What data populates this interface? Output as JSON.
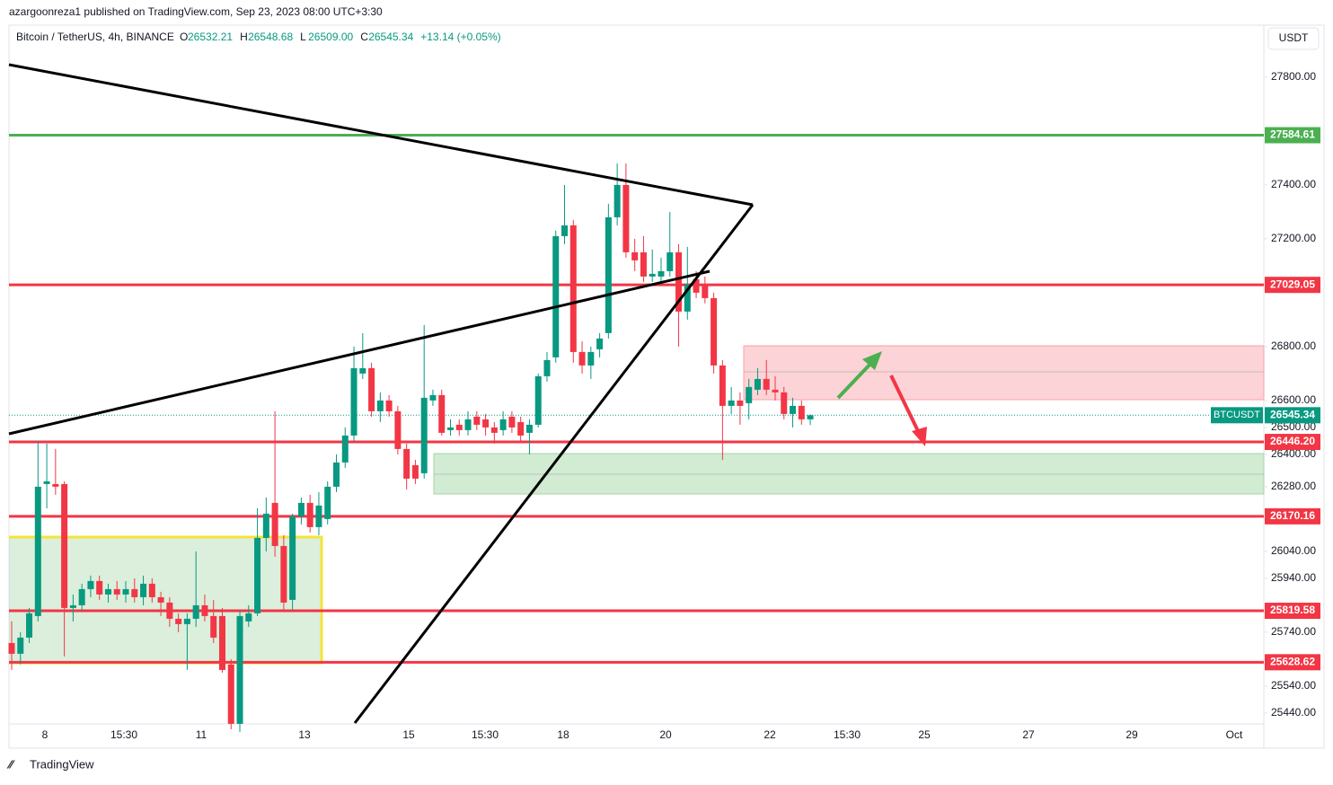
{
  "header": {
    "publisher": "azargoonreza1 published on TradingView.com, Sep 23, 2023 08:00 UTC+3:30",
    "symbol": "Bitcoin / TetherUS, 4h, BINANCE",
    "ohlc": [
      {
        "label": "O",
        "value": "26532.21"
      },
      {
        "label": "H",
        "value": "26548.68"
      },
      {
        "label": "L",
        "value": "26509.00"
      },
      {
        "label": "C",
        "value": "26545.34"
      }
    ],
    "change": "+13.14 (+0.05%)",
    "currency": "USDT"
  },
  "chart_data": {
    "type": "candlestick",
    "up_color": "#089981",
    "down_color": "#f23645",
    "x_labels": [
      "8",
      "15:30",
      "11",
      "13",
      "15",
      "15:30",
      "18",
      "20",
      "22",
      "15:30",
      "25",
      "27",
      "29",
      "Oct"
    ],
    "ylim": [
      25313,
      27993
    ],
    "yticks": [
      {
        "value": 27800,
        "label": "27800.00"
      },
      {
        "value": 27400,
        "label": "27400.00"
      },
      {
        "value": 27200,
        "label": "27200.00"
      },
      {
        "value": 26800,
        "label": "26800.00"
      },
      {
        "value": 26600,
        "label": "26600.00"
      },
      {
        "value": 26500,
        "label": "26500.00"
      },
      {
        "value": 26400,
        "label": "26400.00"
      },
      {
        "value": 26280,
        "label": "26280.00"
      },
      {
        "value": 26040,
        "label": "26040.00"
      },
      {
        "value": 25940,
        "label": "25940.00"
      },
      {
        "value": 25740,
        "label": "25740.00"
      },
      {
        "value": 25540,
        "label": "25540.00"
      },
      {
        "value": 25440,
        "label": "25440.00"
      }
    ],
    "levels": [
      {
        "value": 27584.61,
        "label": "27584.61",
        "color": "#4caf50"
      },
      {
        "value": 27029.05,
        "label": "27029.05",
        "color": "#f23645"
      },
      {
        "value": 26446.2,
        "label": "26446.20",
        "color": "#f23645"
      },
      {
        "value": 26170.16,
        "label": "26170.16",
        "color": "#f23645"
      },
      {
        "value": 25819.58,
        "label": "25819.58",
        "color": "#f23645"
      },
      {
        "value": 25628.62,
        "label": "25628.62",
        "color": "#f23645"
      }
    ],
    "last_price": {
      "name": "BTCUSDT",
      "value": 26545.34,
      "label": "26545.34",
      "color": "#089981"
    },
    "candles": [
      [
        25700,
        25780,
        25600,
        25660
      ],
      [
        25660,
        25740,
        25620,
        25720
      ],
      [
        25720,
        25830,
        25700,
        25810
      ],
      [
        25800,
        26450,
        25780,
        26280
      ],
      [
        26290,
        26440,
        26200,
        26300
      ],
      [
        26290,
        26420,
        26250,
        26280
      ],
      [
        26290,
        26300,
        25650,
        25830
      ],
      [
        25830,
        25880,
        25780,
        25840
      ],
      [
        25840,
        25920,
        25820,
        25900
      ],
      [
        25900,
        25950,
        25870,
        25930
      ],
      [
        25930,
        25950,
        25860,
        25880
      ],
      [
        25880,
        25920,
        25850,
        25900
      ],
      [
        25900,
        25930,
        25860,
        25880
      ],
      [
        25880,
        25930,
        25850,
        25900
      ],
      [
        25900,
        25940,
        25850,
        25870
      ],
      [
        25870,
        25950,
        25840,
        25920
      ],
      [
        25920,
        25940,
        25850,
        25870
      ],
      [
        25870,
        25890,
        25800,
        25850
      ],
      [
        25850,
        25870,
        25760,
        25790
      ],
      [
        25790,
        25810,
        25740,
        25770
      ],
      [
        25770,
        25810,
        25600,
        25790
      ],
      [
        25790,
        26040,
        25760,
        25840
      ],
      [
        25840,
        25880,
        25780,
        25800
      ],
      [
        25800,
        25860,
        25700,
        25720
      ],
      [
        25800,
        25830,
        25590,
        25600
      ],
      [
        25620,
        25640,
        25380,
        25400
      ],
      [
        25400,
        25820,
        25370,
        25800
      ],
      [
        25780,
        25840,
        25760,
        25810
      ],
      [
        25810,
        26200,
        25800,
        26090
      ],
      [
        26090,
        26240,
        26040,
        26180
      ],
      [
        26220,
        26560,
        26020,
        26060
      ],
      [
        26060,
        26100,
        25820,
        25850
      ],
      [
        25860,
        26180,
        25820,
        26170
      ],
      [
        26170,
        26240,
        26140,
        26220
      ],
      [
        26220,
        26250,
        26110,
        26130
      ],
      [
        26130,
        26260,
        26100,
        26210
      ],
      [
        26160,
        26300,
        26140,
        26280
      ],
      [
        26280,
        26400,
        26260,
        26370
      ],
      [
        26370,
        26500,
        26350,
        26470
      ],
      [
        26470,
        26800,
        26450,
        26720
      ],
      [
        26700,
        26850,
        26680,
        26720
      ],
      [
        26720,
        26740,
        26540,
        26560
      ],
      [
        26560,
        26630,
        26520,
        26600
      ],
      [
        26600,
        26620,
        26540,
        26560
      ],
      [
        26560,
        26580,
        26400,
        26420
      ],
      [
        26420,
        26440,
        26270,
        26310
      ],
      [
        26360,
        26380,
        26290,
        26310
      ],
      [
        26330,
        26880,
        26310,
        26610
      ],
      [
        26600,
        26640,
        26580,
        26620
      ],
      [
        26620,
        26640,
        26470,
        26480
      ],
      [
        26490,
        26530,
        26470,
        26500
      ],
      [
        26510,
        26530,
        26470,
        26490
      ],
      [
        26490,
        26560,
        26470,
        26530
      ],
      [
        26540,
        26560,
        26490,
        26510
      ],
      [
        26530,
        26550,
        26470,
        26500
      ],
      [
        26500,
        26520,
        26440,
        26480
      ],
      [
        26490,
        26560,
        26470,
        26530
      ],
      [
        26540,
        26560,
        26480,
        26500
      ],
      [
        26520,
        26540,
        26450,
        26470
      ],
      [
        26480,
        26530,
        26400,
        26510
      ],
      [
        26510,
        26700,
        26500,
        26690
      ],
      [
        26690,
        26780,
        26670,
        26750
      ],
      [
        26760,
        27230,
        26740,
        27210
      ],
      [
        27210,
        27400,
        27180,
        27250
      ],
      [
        27250,
        27270,
        26740,
        26780
      ],
      [
        26780,
        26820,
        26700,
        26730
      ],
      [
        26730,
        26800,
        26680,
        26780
      ],
      [
        26790,
        26850,
        26760,
        26830
      ],
      [
        26850,
        27330,
        26830,
        27280
      ],
      [
        27280,
        27480,
        27250,
        27400
      ],
      [
        27400,
        27480,
        27130,
        27150
      ],
      [
        27150,
        27200,
        27080,
        27120
      ],
      [
        27150,
        27210,
        27040,
        27060
      ],
      [
        27060,
        27160,
        27040,
        27070
      ],
      [
        27060,
        27130,
        27030,
        27080
      ],
      [
        27080,
        27300,
        27060,
        27150
      ],
      [
        27150,
        27180,
        26800,
        26930
      ],
      [
        26930,
        27170,
        26900,
        27030
      ],
      [
        27050,
        27080,
        26980,
        27000
      ],
      [
        27030,
        27060,
        26960,
        26980
      ],
      [
        26980,
        27000,
        26700,
        26730
      ],
      [
        26730,
        26750,
        26380,
        26580
      ],
      [
        26580,
        26650,
        26550,
        26600
      ],
      [
        26600,
        26630,
        26510,
        26580
      ],
      [
        26590,
        26680,
        26530,
        26650
      ],
      [
        26640,
        26720,
        26620,
        26680
      ],
      [
        26680,
        26750,
        26620,
        26640
      ],
      [
        26640,
        26690,
        26600,
        26630
      ],
      [
        26630,
        26650,
        26530,
        26550
      ],
      [
        26550,
        26610,
        26500,
        26580
      ],
      [
        26580,
        26600,
        26510,
        26530
      ],
      [
        26530,
        26548.68,
        26509,
        26545.34
      ]
    ]
  },
  "footer": {
    "brand": "TradingView"
  }
}
